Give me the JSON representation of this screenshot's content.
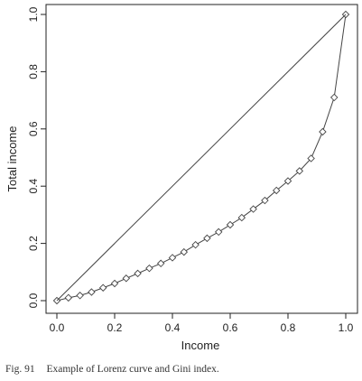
{
  "chart_data": {
    "type": "line",
    "title": "",
    "xlabel": "Income",
    "ylabel": "Total income",
    "xlim": [
      0,
      1
    ],
    "ylim": [
      0,
      1
    ],
    "x_ticks": [
      "0.0",
      "0.2",
      "0.4",
      "0.6",
      "0.8",
      "1.0"
    ],
    "y_ticks": [
      "0.0",
      "0.2",
      "0.4",
      "0.6",
      "0.8",
      "1.0"
    ],
    "grid": false,
    "legend": "none",
    "series": [
      {
        "marker": "diamond",
        "x": [
          0.0,
          0.04,
          0.08,
          0.12,
          0.16,
          0.2,
          0.24,
          0.28,
          0.32,
          0.36,
          0.4,
          0.44,
          0.48,
          0.52,
          0.56,
          0.6,
          0.64,
          0.68,
          0.72,
          0.76,
          0.8,
          0.84,
          0.88,
          0.92,
          0.96,
          1.0
        ],
        "y": [
          0.0,
          0.01,
          0.018,
          0.03,
          0.045,
          0.06,
          0.078,
          0.095,
          0.113,
          0.13,
          0.15,
          0.17,
          0.195,
          0.218,
          0.24,
          0.265,
          0.29,
          0.32,
          0.35,
          0.385,
          0.418,
          0.453,
          0.497,
          0.59,
          0.71,
          1.0
        ]
      },
      {
        "style": "line",
        "x": [
          0.0,
          1.0
        ],
        "y": [
          0.0,
          1.0
        ]
      }
    ],
    "colors": {
      "line": "#444444",
      "axis": "#222222"
    }
  },
  "caption": {
    "number": "Fig. 91",
    "text": "Example of Lorenz curve and Gini index."
  }
}
